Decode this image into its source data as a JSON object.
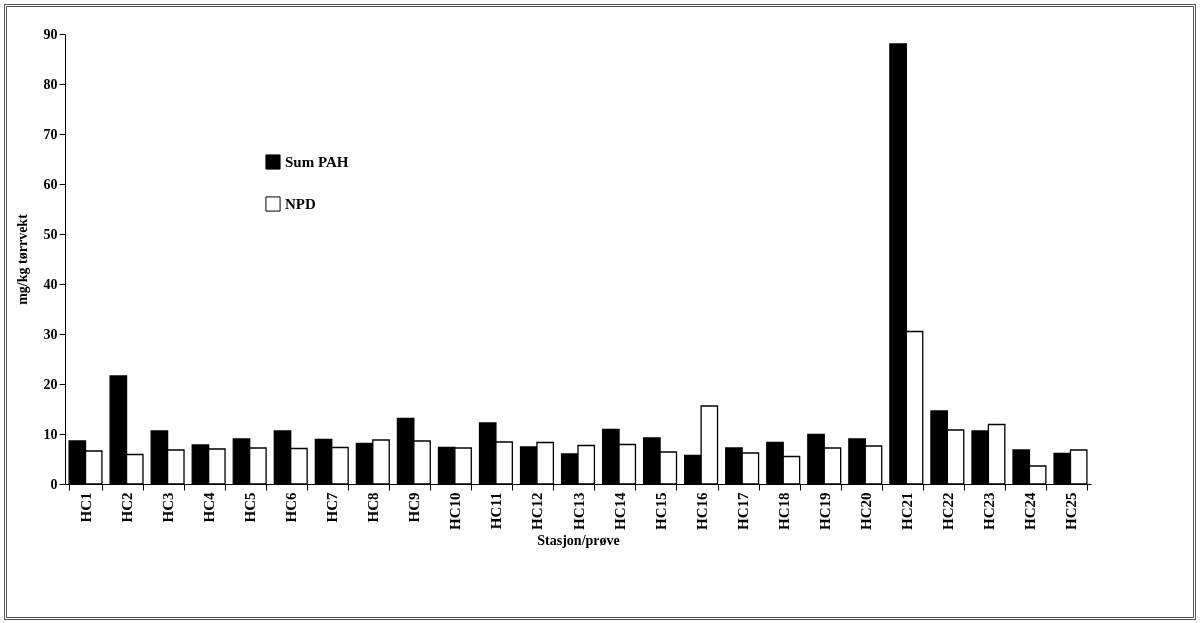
{
  "chart_data": {
    "type": "bar",
    "xlabel": "Stasjon/prøve",
    "ylabel": "mg/kg tørrvekt",
    "categories": [
      "HC1",
      "HC2",
      "HC3",
      "HC4",
      "HC5",
      "HC6",
      "HC7",
      "HC8",
      "HC9",
      "HC10",
      "HC11",
      "HC12",
      "HC13",
      "HC14",
      "HC15",
      "HC16",
      "HC17",
      "HC18",
      "HC19",
      "HC20",
      "HC21",
      "HC22",
      "HC23",
      "HC24",
      "HC25"
    ],
    "series": [
      {
        "name": "Sum PAH",
        "color": "#000000",
        "values": [
          8.6,
          21.6,
          10.6,
          7.8,
          9.0,
          10.6,
          8.9,
          8.1,
          13.1,
          7.3,
          12.2,
          7.4,
          6.0,
          10.9,
          9.2,
          5.7,
          7.2,
          8.3,
          9.9,
          9.0,
          88,
          14.6,
          10.6,
          6.8,
          6.1
        ]
      },
      {
        "name": "NPD",
        "color": "#ffffff",
        "values": [
          6.6,
          5.9,
          6.8,
          7.0,
          7.2,
          7.1,
          7.3,
          8.8,
          8.6,
          7.2,
          8.4,
          8.3,
          7.7,
          7.9,
          6.4,
          15.6,
          6.2,
          5.5,
          7.2,
          7.6,
          30.5,
          10.8,
          11.9,
          3.6,
          6.8
        ]
      }
    ],
    "ylim": [
      0,
      90
    ],
    "yticks": [
      0,
      10,
      20,
      30,
      40,
      50,
      60,
      70,
      80,
      90
    ],
    "grid": false,
    "legend": "top left"
  }
}
